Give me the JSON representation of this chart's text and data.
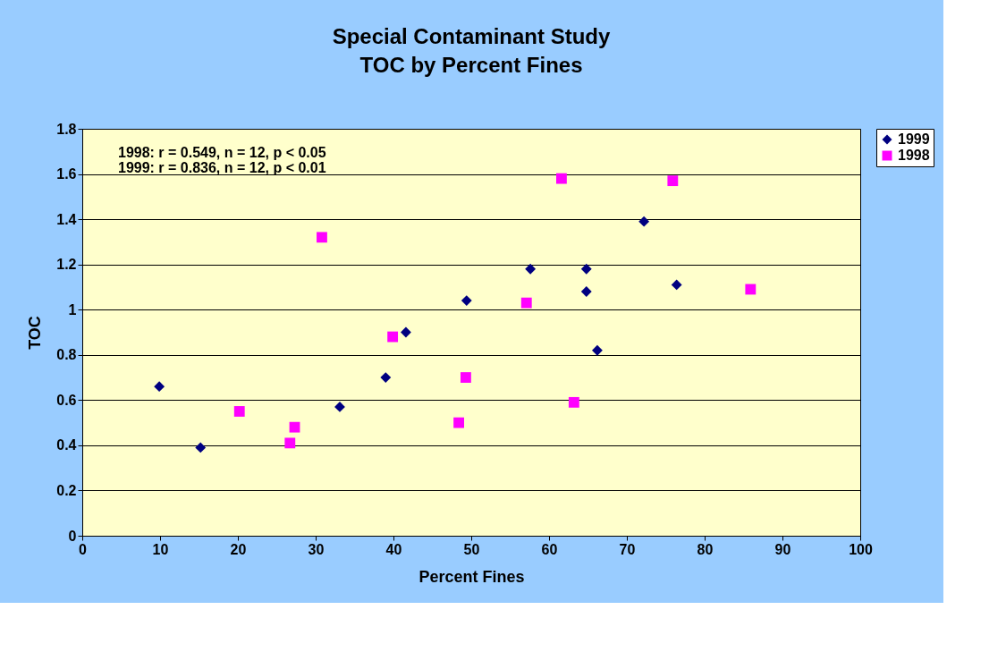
{
  "chart_data": {
    "type": "scatter",
    "title": "Special Contaminant Study",
    "subtitle": "TOC by Percent Fines",
    "xlabel": "Percent Fines",
    "ylabel": "TOC",
    "annotations": [
      "1998: r = 0.549, n = 12, p < 0.05",
      "1999: r = 0.836, n = 12, p < 0.01"
    ],
    "series": [
      {
        "name": "1999",
        "color": "#000080",
        "marker": "diamond",
        "x": [
          9.9,
          15.2,
          33.1,
          39.0,
          41.6,
          49.4,
          57.6,
          64.8,
          64.8,
          66.2,
          72.2,
          76.4
        ],
        "values": [
          0.66,
          0.39,
          0.57,
          0.7,
          0.9,
          1.04,
          1.18,
          1.18,
          1.08,
          0.82,
          1.39,
          1.11
        ]
      },
      {
        "name": "1998",
        "color": "#ff00ff",
        "marker": "square",
        "x": [
          20.2,
          26.7,
          27.3,
          30.8,
          39.9,
          48.4,
          49.3,
          57.1,
          61.6,
          63.2,
          75.9,
          85.9
        ],
        "values": [
          0.55,
          0.41,
          0.48,
          1.32,
          0.88,
          0.5,
          0.7,
          1.03,
          1.58,
          0.59,
          1.57,
          1.09
        ]
      }
    ],
    "xlim": [
      0,
      100
    ],
    "xticks": [
      0,
      10,
      20,
      30,
      40,
      50,
      60,
      70,
      80,
      90,
      100
    ],
    "ylim": [
      0,
      1.8
    ],
    "yticks": [
      0,
      0.2,
      0.4,
      0.6,
      0.8,
      1,
      1.2,
      1.4,
      1.6,
      1.8
    ],
    "grid": "y",
    "legend": "right"
  }
}
